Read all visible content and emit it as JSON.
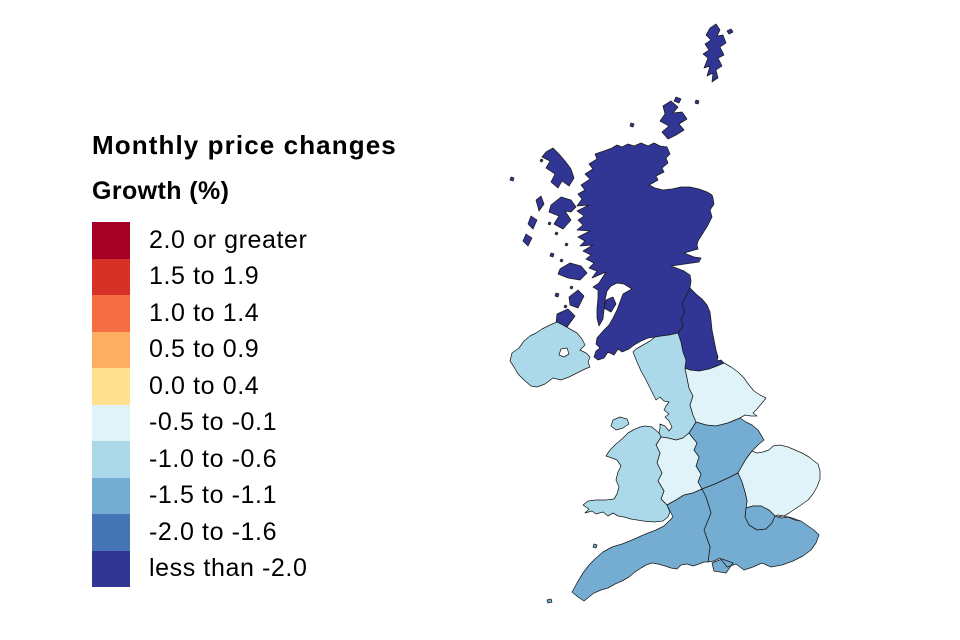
{
  "title": "Monthly price changes",
  "legend": {
    "subtitle": "Growth (%)",
    "items": [
      {
        "label": "2.0 or greater",
        "color": "#a50026"
      },
      {
        "label": "1.5 to 1.9",
        "color": "#d73027"
      },
      {
        "label": "1.0 to 1.4",
        "color": "#f46d43"
      },
      {
        "label": "0.5 to 0.9",
        "color": "#fdae61"
      },
      {
        "label": "0.0 to 0.4",
        "color": "#fee090"
      },
      {
        "label": "-0.5 to -0.1",
        "color": "#e0f3f8"
      },
      {
        "label": "-1.0 to -0.6",
        "color": "#abd9e9"
      },
      {
        "label": "-1.5 to -1.1",
        "color": "#74add1"
      },
      {
        "label": "-2.0 to -1.6",
        "color": "#4575b4"
      },
      {
        "label": "less than -2.0",
        "color": "#313695"
      }
    ]
  },
  "map": {
    "border_color": "#1a1a1a",
    "regions": [
      {
        "id": "scotland",
        "name": "Scotland",
        "band": "less than -2.0",
        "color": "#313695"
      },
      {
        "id": "north-east",
        "name": "North East",
        "band": "less than -2.0",
        "color": "#313695"
      },
      {
        "id": "northern-ireland",
        "name": "Northern Ireland",
        "band": "-1.0 to -0.6",
        "color": "#abd9e9"
      },
      {
        "id": "north-west",
        "name": "North West",
        "band": "-1.0 to -0.6",
        "color": "#abd9e9"
      },
      {
        "id": "yorkshire-and-the-humber",
        "name": "Yorkshire and The Humber",
        "band": "-0.5 to -0.1",
        "color": "#e0f3f8"
      },
      {
        "id": "east-midlands",
        "name": "East Midlands",
        "band": "-1.5 to -1.1",
        "color": "#74add1"
      },
      {
        "id": "west-midlands",
        "name": "West Midlands",
        "band": "-0.5 to -0.1",
        "color": "#e0f3f8"
      },
      {
        "id": "wales",
        "name": "Wales",
        "band": "-1.0 to -0.6",
        "color": "#abd9e9"
      },
      {
        "id": "east-of-england",
        "name": "East of England",
        "band": "-0.5 to -0.1",
        "color": "#e0f3f8"
      },
      {
        "id": "london",
        "name": "London",
        "band": "-1.5 to -1.1",
        "color": "#74add1"
      },
      {
        "id": "south-east",
        "name": "South East",
        "band": "-1.5 to -1.1",
        "color": "#74add1"
      },
      {
        "id": "south-west",
        "name": "South West",
        "band": "-1.5 to -1.1",
        "color": "#74add1"
      }
    ]
  }
}
